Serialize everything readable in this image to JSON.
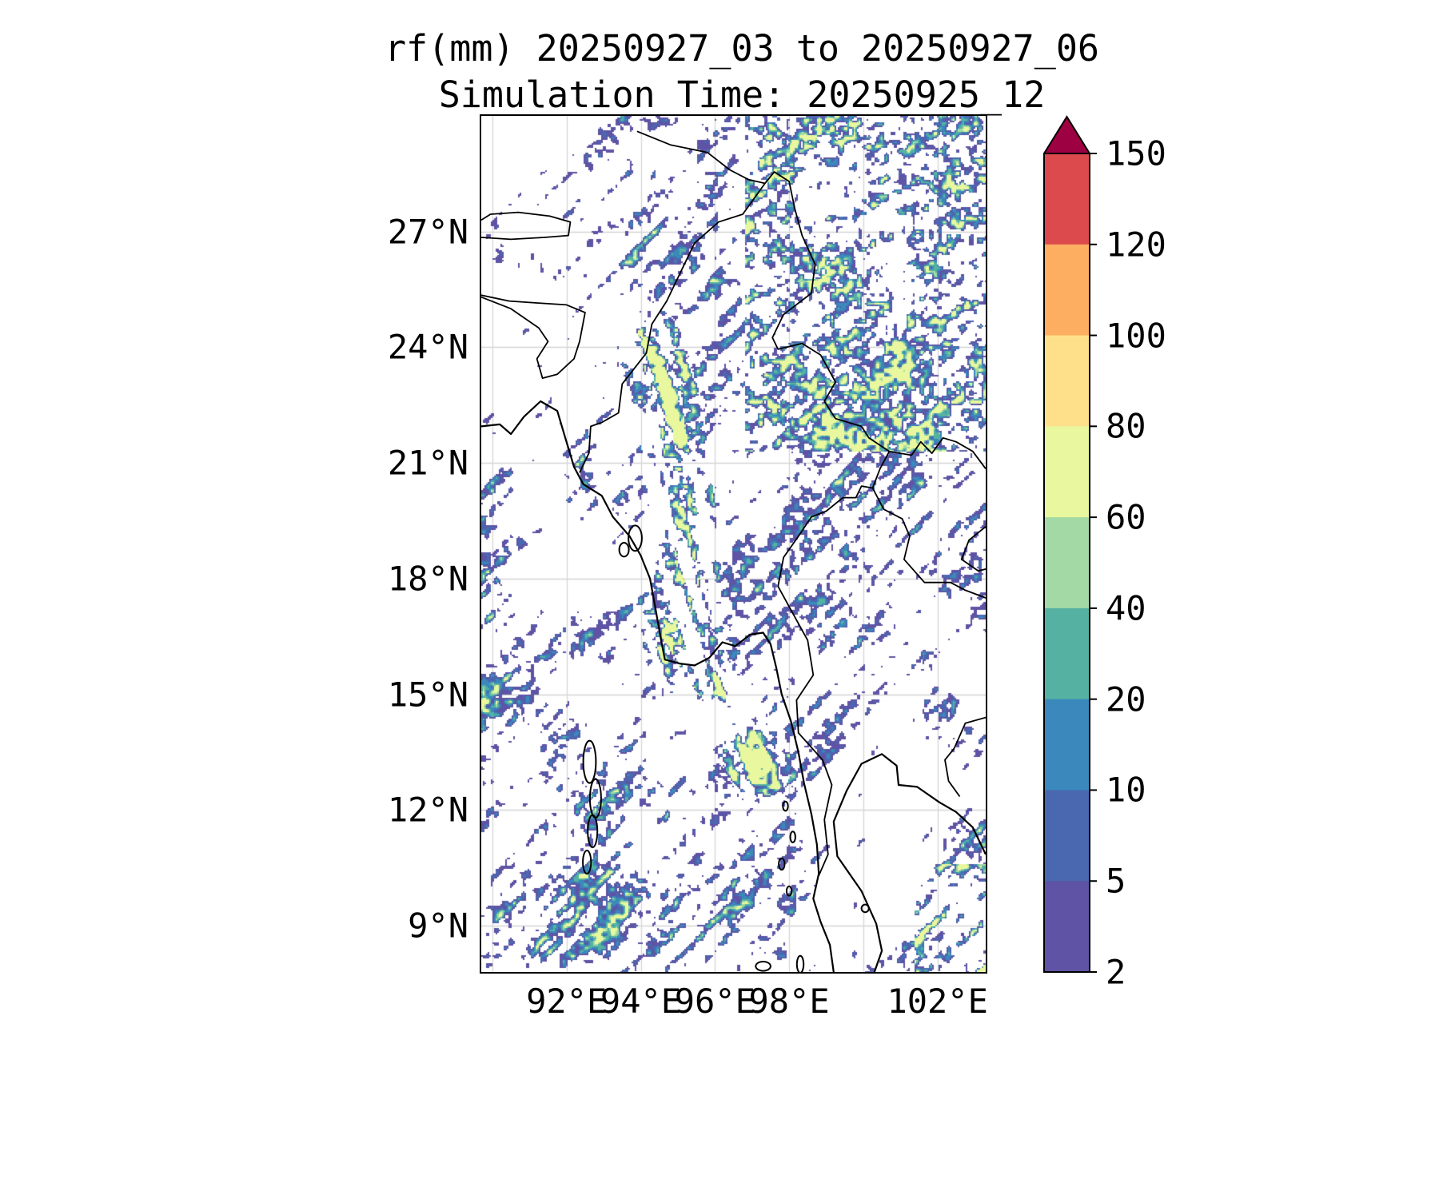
{
  "header": {
    "title": "rf(mm) 20250927_03 to 20250927_06",
    "subtitle": "Simulation Time: 20250925_12"
  },
  "chart_data": {
    "type": "heatmap",
    "title": "rf(mm) 20250927_03 to 20250927_06",
    "subtitle": "Simulation Time: 20250925_12",
    "variable": "rf",
    "units": "mm",
    "valid_period": "20250927_03 to 20250927_06",
    "simulation_time": "20250925_12",
    "lon_range": [
      89.7,
      103.3
    ],
    "lat_range": [
      7.8,
      30.0
    ],
    "x_ticks": [
      {
        "lon": 92,
        "label": "92°E"
      },
      {
        "lon": 94,
        "label": "94°E"
      },
      {
        "lon": 96,
        "label": "96°E"
      },
      {
        "lon": 98,
        "label": "98°E"
      },
      {
        "lon": 102,
        "label": "102°E"
      }
    ],
    "y_ticks": [
      {
        "lat": 27,
        "label": "27°N"
      },
      {
        "lat": 24,
        "label": "24°N"
      },
      {
        "lat": 21,
        "label": "21°N"
      },
      {
        "lat": 18,
        "label": "18°N"
      },
      {
        "lat": 15,
        "label": "15°N"
      },
      {
        "lat": 12,
        "label": "12°N"
      },
      {
        "lat": 9,
        "label": "9°N"
      }
    ],
    "grid_lons": [
      90,
      92,
      94,
      96,
      98,
      100,
      102
    ],
    "grid_lats": [
      9,
      12,
      15,
      18,
      21,
      24,
      27
    ],
    "colorbar": {
      "levels": [
        2,
        5,
        10,
        20,
        40,
        60,
        80,
        100,
        120,
        150
      ],
      "colors": [
        "#5e53a4",
        "#4a68af",
        "#3a88bc",
        "#55b2a2",
        "#a3d9a4",
        "#e9f79e",
        "#fee08b",
        "#fdae61",
        "#dd4a4d"
      ],
      "extend_above_color": "#9e0142",
      "tick_labels_top_to_bottom": [
        "150",
        "120",
        "100",
        "80",
        "60",
        "40",
        "20",
        "10",
        "5",
        "2"
      ]
    },
    "pattern_description": "Scattered light rain (2-10 mm) speckles over most of the domain; NE-SW oriented rain streaks over the Bay of Bengal; a moderate rain band (10-60 mm) along the Chindwin-Irrawaddy valley continuing to the Arakan coast and Gulf of Martaban; dense fine speckle over the northeast (Yunnan) sector; mostly dry over the Gulf of Thailand with a small heavier patch in the far southeast corner."
  },
  "basemap": {
    "coast_color": "#000000",
    "grid_color": "#d4d4d4",
    "coastlines": [
      [
        [
          89.7,
          21.95
        ],
        [
          90.2,
          22.0
        ],
        [
          90.5,
          21.75
        ],
        [
          90.85,
          22.2
        ],
        [
          91.3,
          22.6
        ],
        [
          91.75,
          22.35
        ],
        [
          91.95,
          21.7
        ],
        [
          92.2,
          20.9
        ],
        [
          92.45,
          20.45
        ],
        [
          92.95,
          20.15
        ],
        [
          93.25,
          19.6
        ],
        [
          93.7,
          19.1
        ],
        [
          94.0,
          18.6
        ],
        [
          94.25,
          18.0
        ],
        [
          94.4,
          17.2
        ],
        [
          94.55,
          16.4
        ],
        [
          94.65,
          15.9
        ],
        [
          95.05,
          15.8
        ],
        [
          95.45,
          15.75
        ],
        [
          95.85,
          15.95
        ],
        [
          96.2,
          16.35
        ],
        [
          96.55,
          16.25
        ],
        [
          96.95,
          16.55
        ],
        [
          97.3,
          16.6
        ],
        [
          97.5,
          16.3
        ],
        [
          97.65,
          15.7
        ],
        [
          97.8,
          15.0
        ],
        [
          98.05,
          14.3
        ],
        [
          98.25,
          13.5
        ],
        [
          98.4,
          12.7
        ],
        [
          98.6,
          11.9
        ],
        [
          98.75,
          11.1
        ],
        [
          98.8,
          10.35
        ],
        [
          98.65,
          9.7
        ],
        [
          98.85,
          9.1
        ],
        [
          99.1,
          8.5
        ],
        [
          99.2,
          7.8
        ]
      ],
      [
        [
          100.3,
          7.8
        ],
        [
          100.5,
          8.35
        ],
        [
          100.35,
          9.05
        ],
        [
          99.95,
          9.9
        ],
        [
          99.3,
          10.8
        ],
        [
          99.2,
          11.7
        ],
        [
          99.55,
          12.5
        ],
        [
          99.95,
          13.2
        ],
        [
          100.5,
          13.45
        ],
        [
          100.9,
          13.15
        ],
        [
          100.95,
          12.65
        ],
        [
          101.45,
          12.6
        ],
        [
          102.05,
          12.2
        ],
        [
          102.5,
          11.95
        ],
        [
          102.95,
          11.55
        ],
        [
          103.3,
          10.85
        ]
      ]
    ],
    "borders": [
      [
        [
          97.35,
          28.25
        ],
        [
          96.75,
          27.45
        ],
        [
          96.1,
          27.25
        ],
        [
          95.45,
          26.7
        ],
        [
          95.1,
          26.0
        ],
        [
          94.7,
          25.2
        ],
        [
          94.3,
          24.6
        ],
        [
          94.15,
          23.85
        ],
        [
          93.5,
          23.05
        ],
        [
          93.4,
          22.3
        ],
        [
          92.95,
          22.05
        ],
        [
          92.65,
          21.95
        ],
        [
          92.6,
          21.25
        ],
        [
          92.35,
          20.75
        ]
      ],
      [
        [
          89.7,
          26.85
        ],
        [
          90.5,
          26.8
        ],
        [
          91.4,
          26.85
        ],
        [
          92.05,
          26.9
        ],
        [
          92.1,
          27.25
        ],
        [
          91.55,
          27.4
        ],
        [
          90.7,
          27.5
        ],
        [
          89.95,
          27.45
        ],
        [
          89.7,
          27.3
        ]
      ],
      [
        [
          89.7,
          25.35
        ],
        [
          90.45,
          25.2
        ],
        [
          91.2,
          25.15
        ],
        [
          92.0,
          25.1
        ],
        [
          92.5,
          24.9
        ],
        [
          92.35,
          24.15
        ],
        [
          92.2,
          23.7
        ],
        [
          91.75,
          23.3
        ],
        [
          91.35,
          23.2
        ],
        [
          91.2,
          23.7
        ],
        [
          91.5,
          24.15
        ],
        [
          91.25,
          24.5
        ],
        [
          90.5,
          25.0
        ],
        [
          89.7,
          25.3
        ]
      ],
      [
        [
          93.9,
          29.6
        ],
        [
          94.8,
          29.25
        ],
        [
          95.8,
          29.05
        ],
        [
          96.4,
          28.6
        ],
        [
          96.9,
          28.35
        ],
        [
          97.35,
          28.25
        ]
      ],
      [
        [
          97.35,
          28.25
        ],
        [
          97.6,
          28.55
        ],
        [
          98.0,
          28.3
        ],
        [
          98.15,
          27.6
        ],
        [
          98.35,
          26.9
        ],
        [
          98.7,
          26.15
        ],
        [
          98.6,
          25.4
        ],
        [
          97.85,
          24.85
        ],
        [
          97.55,
          24.25
        ],
        [
          97.7,
          23.95
        ],
        [
          98.35,
          24.1
        ],
        [
          98.85,
          23.8
        ],
        [
          99.25,
          23.1
        ],
        [
          98.95,
          22.6
        ],
        [
          99.25,
          22.15
        ],
        [
          99.95,
          21.95
        ],
        [
          100.15,
          21.65
        ],
        [
          100.7,
          21.3
        ]
      ],
      [
        [
          100.7,
          21.3
        ],
        [
          100.45,
          20.85
        ],
        [
          100.25,
          20.35
        ],
        [
          99.95,
          20.4
        ],
        [
          99.8,
          20.1
        ],
        [
          99.45,
          20.1
        ],
        [
          99.0,
          19.75
        ],
        [
          98.6,
          19.6
        ],
        [
          98.25,
          19.1
        ],
        [
          97.85,
          18.55
        ],
        [
          97.7,
          17.8
        ],
        [
          98.1,
          17.1
        ],
        [
          98.5,
          16.4
        ],
        [
          98.65,
          15.5
        ],
        [
          98.2,
          14.85
        ],
        [
          98.25,
          14.0
        ],
        [
          98.9,
          13.3
        ],
        [
          99.15,
          12.65
        ],
        [
          98.95,
          11.75
        ],
        [
          99.05,
          10.85
        ],
        [
          98.8,
          10.3
        ]
      ],
      [
        [
          100.7,
          21.3
        ],
        [
          101.3,
          21.2
        ],
        [
          101.55,
          21.55
        ],
        [
          101.85,
          21.25
        ],
        [
          102.15,
          21.65
        ],
        [
          102.5,
          21.55
        ],
        [
          102.95,
          21.3
        ],
        [
          103.3,
          20.85
        ]
      ],
      [
        [
          100.25,
          20.35
        ],
        [
          100.55,
          19.8
        ],
        [
          101.05,
          19.55
        ],
        [
          101.25,
          19.1
        ],
        [
          101.1,
          18.5
        ],
        [
          101.65,
          17.9
        ],
        [
          102.35,
          17.9
        ],
        [
          102.75,
          17.7
        ],
        [
          103.3,
          17.5
        ]
      ],
      [
        [
          102.45,
          13.6
        ],
        [
          102.75,
          14.25
        ],
        [
          103.3,
          14.4
        ]
      ],
      [
        [
          102.45,
          13.6
        ],
        [
          102.2,
          13.3
        ],
        [
          102.3,
          12.75
        ],
        [
          102.6,
          12.35
        ]
      ],
      [
        [
          103.3,
          19.35
        ],
        [
          102.85,
          19.0
        ],
        [
          102.65,
          18.5
        ],
        [
          103.1,
          18.2
        ],
        [
          103.3,
          18.25
        ]
      ]
    ],
    "islands": [
      {
        "lon": 92.62,
        "lat": 13.25,
        "rx": 0.17,
        "ry": 0.55
      },
      {
        "lon": 92.78,
        "lat": 12.3,
        "rx": 0.15,
        "ry": 0.5
      },
      {
        "lon": 92.7,
        "lat": 11.45,
        "rx": 0.13,
        "ry": 0.42
      },
      {
        "lon": 92.55,
        "lat": 10.65,
        "rx": 0.11,
        "ry": 0.3
      },
      {
        "lon": 93.85,
        "lat": 19.05,
        "rx": 0.18,
        "ry": 0.33
      },
      {
        "lon": 93.55,
        "lat": 18.75,
        "rx": 0.13,
        "ry": 0.18
      },
      {
        "lon": 97.9,
        "lat": 12.1,
        "rx": 0.07,
        "ry": 0.12
      },
      {
        "lon": 98.1,
        "lat": 11.3,
        "rx": 0.07,
        "ry": 0.14
      },
      {
        "lon": 97.8,
        "lat": 10.6,
        "rx": 0.08,
        "ry": 0.15
      },
      {
        "lon": 98.0,
        "lat": 9.9,
        "rx": 0.07,
        "ry": 0.12
      },
      {
        "lon": 98.3,
        "lat": 8.0,
        "rx": 0.09,
        "ry": 0.22
      },
      {
        "lon": 100.05,
        "lat": 9.45,
        "rx": 0.1,
        "ry": 0.1
      },
      {
        "lon": 97.3,
        "lat": 7.95,
        "rx": 0.2,
        "ry": 0.12
      }
    ]
  }
}
